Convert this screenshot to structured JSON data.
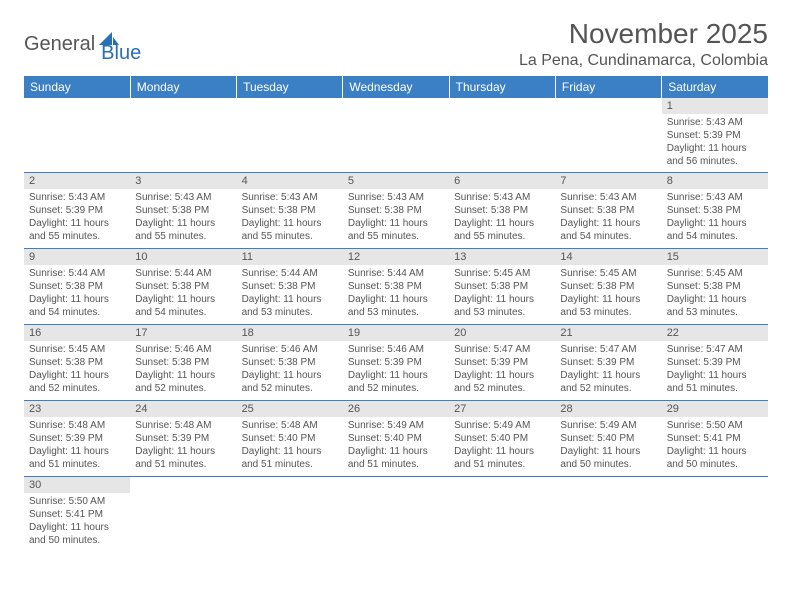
{
  "logo": {
    "general": "General",
    "blue": "Blue"
  },
  "title": "November 2025",
  "location": "La Pena, Cundinamarca, Colombia",
  "colors": {
    "header_bg": "#3b7fc4",
    "header_text": "#ffffff",
    "daynum_bg": "#e6e6e6",
    "border": "#3b7fc4",
    "text": "#555555",
    "logo_blue": "#2b6fb3"
  },
  "weekdays": [
    "Sunday",
    "Monday",
    "Tuesday",
    "Wednesday",
    "Thursday",
    "Friday",
    "Saturday"
  ],
  "weeks": [
    [
      null,
      null,
      null,
      null,
      null,
      null,
      {
        "n": "1",
        "sr": "Sunrise: 5:43 AM",
        "ss": "Sunset: 5:39 PM",
        "dl": "Daylight: 11 hours and 56 minutes."
      }
    ],
    [
      {
        "n": "2",
        "sr": "Sunrise: 5:43 AM",
        "ss": "Sunset: 5:39 PM",
        "dl": "Daylight: 11 hours and 55 minutes."
      },
      {
        "n": "3",
        "sr": "Sunrise: 5:43 AM",
        "ss": "Sunset: 5:38 PM",
        "dl": "Daylight: 11 hours and 55 minutes."
      },
      {
        "n": "4",
        "sr": "Sunrise: 5:43 AM",
        "ss": "Sunset: 5:38 PM",
        "dl": "Daylight: 11 hours and 55 minutes."
      },
      {
        "n": "5",
        "sr": "Sunrise: 5:43 AM",
        "ss": "Sunset: 5:38 PM",
        "dl": "Daylight: 11 hours and 55 minutes."
      },
      {
        "n": "6",
        "sr": "Sunrise: 5:43 AM",
        "ss": "Sunset: 5:38 PM",
        "dl": "Daylight: 11 hours and 55 minutes."
      },
      {
        "n": "7",
        "sr": "Sunrise: 5:43 AM",
        "ss": "Sunset: 5:38 PM",
        "dl": "Daylight: 11 hours and 54 minutes."
      },
      {
        "n": "8",
        "sr": "Sunrise: 5:43 AM",
        "ss": "Sunset: 5:38 PM",
        "dl": "Daylight: 11 hours and 54 minutes."
      }
    ],
    [
      {
        "n": "9",
        "sr": "Sunrise: 5:44 AM",
        "ss": "Sunset: 5:38 PM",
        "dl": "Daylight: 11 hours and 54 minutes."
      },
      {
        "n": "10",
        "sr": "Sunrise: 5:44 AM",
        "ss": "Sunset: 5:38 PM",
        "dl": "Daylight: 11 hours and 54 minutes."
      },
      {
        "n": "11",
        "sr": "Sunrise: 5:44 AM",
        "ss": "Sunset: 5:38 PM",
        "dl": "Daylight: 11 hours and 53 minutes."
      },
      {
        "n": "12",
        "sr": "Sunrise: 5:44 AM",
        "ss": "Sunset: 5:38 PM",
        "dl": "Daylight: 11 hours and 53 minutes."
      },
      {
        "n": "13",
        "sr": "Sunrise: 5:45 AM",
        "ss": "Sunset: 5:38 PM",
        "dl": "Daylight: 11 hours and 53 minutes."
      },
      {
        "n": "14",
        "sr": "Sunrise: 5:45 AM",
        "ss": "Sunset: 5:38 PM",
        "dl": "Daylight: 11 hours and 53 minutes."
      },
      {
        "n": "15",
        "sr": "Sunrise: 5:45 AM",
        "ss": "Sunset: 5:38 PM",
        "dl": "Daylight: 11 hours and 53 minutes."
      }
    ],
    [
      {
        "n": "16",
        "sr": "Sunrise: 5:45 AM",
        "ss": "Sunset: 5:38 PM",
        "dl": "Daylight: 11 hours and 52 minutes."
      },
      {
        "n": "17",
        "sr": "Sunrise: 5:46 AM",
        "ss": "Sunset: 5:38 PM",
        "dl": "Daylight: 11 hours and 52 minutes."
      },
      {
        "n": "18",
        "sr": "Sunrise: 5:46 AM",
        "ss": "Sunset: 5:38 PM",
        "dl": "Daylight: 11 hours and 52 minutes."
      },
      {
        "n": "19",
        "sr": "Sunrise: 5:46 AM",
        "ss": "Sunset: 5:39 PM",
        "dl": "Daylight: 11 hours and 52 minutes."
      },
      {
        "n": "20",
        "sr": "Sunrise: 5:47 AM",
        "ss": "Sunset: 5:39 PM",
        "dl": "Daylight: 11 hours and 52 minutes."
      },
      {
        "n": "21",
        "sr": "Sunrise: 5:47 AM",
        "ss": "Sunset: 5:39 PM",
        "dl": "Daylight: 11 hours and 52 minutes."
      },
      {
        "n": "22",
        "sr": "Sunrise: 5:47 AM",
        "ss": "Sunset: 5:39 PM",
        "dl": "Daylight: 11 hours and 51 minutes."
      }
    ],
    [
      {
        "n": "23",
        "sr": "Sunrise: 5:48 AM",
        "ss": "Sunset: 5:39 PM",
        "dl": "Daylight: 11 hours and 51 minutes."
      },
      {
        "n": "24",
        "sr": "Sunrise: 5:48 AM",
        "ss": "Sunset: 5:39 PM",
        "dl": "Daylight: 11 hours and 51 minutes."
      },
      {
        "n": "25",
        "sr": "Sunrise: 5:48 AM",
        "ss": "Sunset: 5:40 PM",
        "dl": "Daylight: 11 hours and 51 minutes."
      },
      {
        "n": "26",
        "sr": "Sunrise: 5:49 AM",
        "ss": "Sunset: 5:40 PM",
        "dl": "Daylight: 11 hours and 51 minutes."
      },
      {
        "n": "27",
        "sr": "Sunrise: 5:49 AM",
        "ss": "Sunset: 5:40 PM",
        "dl": "Daylight: 11 hours and 51 minutes."
      },
      {
        "n": "28",
        "sr": "Sunrise: 5:49 AM",
        "ss": "Sunset: 5:40 PM",
        "dl": "Daylight: 11 hours and 50 minutes."
      },
      {
        "n": "29",
        "sr": "Sunrise: 5:50 AM",
        "ss": "Sunset: 5:41 PM",
        "dl": "Daylight: 11 hours and 50 minutes."
      }
    ],
    [
      {
        "n": "30",
        "sr": "Sunrise: 5:50 AM",
        "ss": "Sunset: 5:41 PM",
        "dl": "Daylight: 11 hours and 50 minutes."
      },
      null,
      null,
      null,
      null,
      null,
      null
    ]
  ]
}
